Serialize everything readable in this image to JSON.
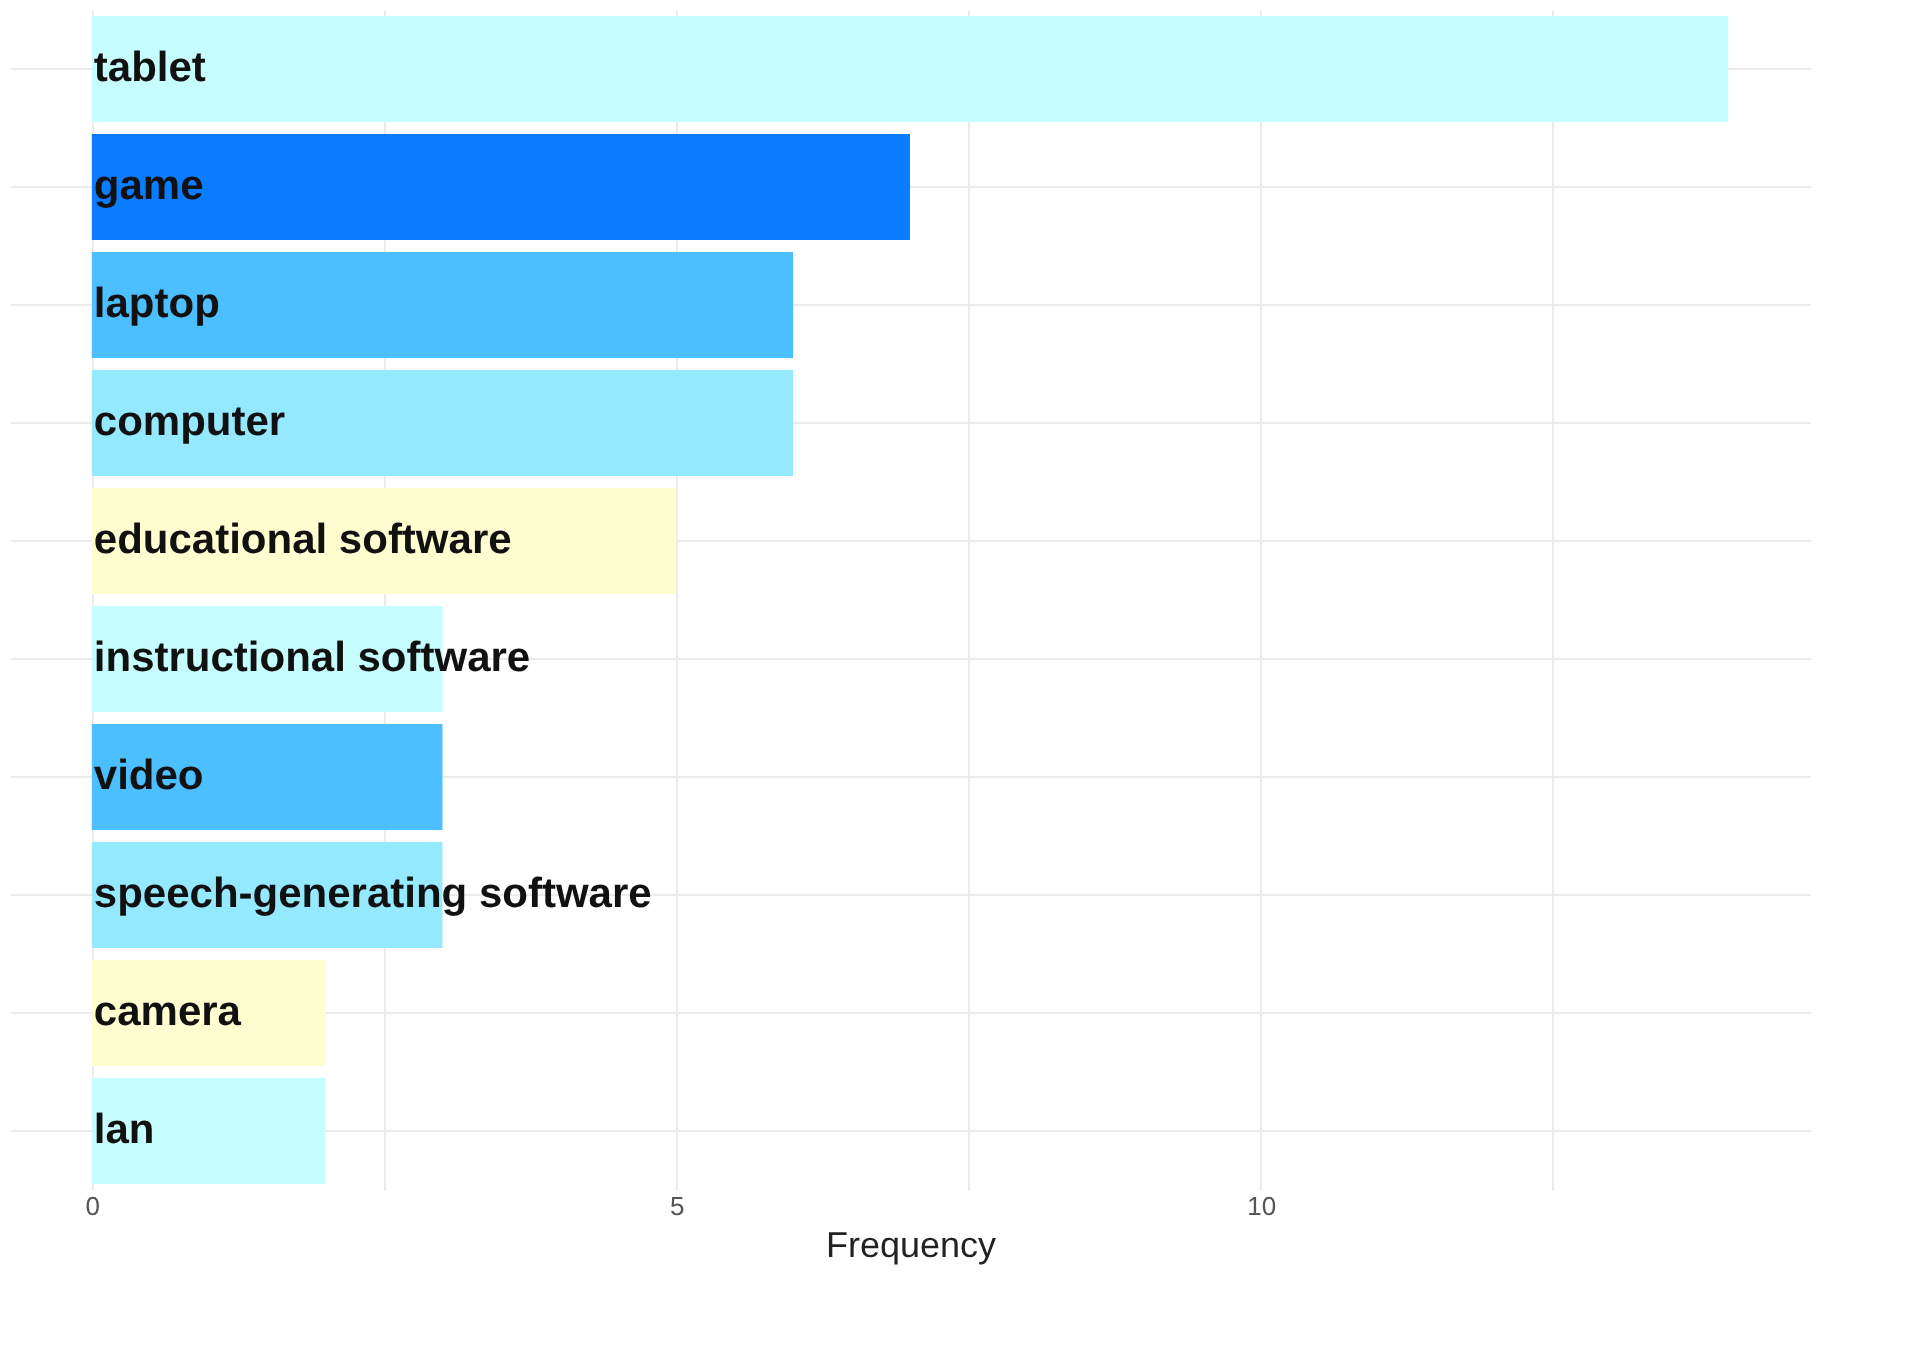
{
  "chart_data": {
    "type": "bar",
    "orientation": "horizontal",
    "xlabel": "Frequency",
    "categories": [
      "tablet",
      "game",
      "laptop",
      "computer",
      "educational software",
      "instructional software",
      "video",
      "speech-generating software",
      "camera",
      "lan"
    ],
    "values": [
      14,
      7,
      6,
      6,
      5,
      3,
      3,
      3,
      2,
      2
    ],
    "colors": [
      "#c6fdff",
      "#0a7cff",
      "#4bbfff",
      "#95e9ff",
      "#fefed0",
      "#c6fdff",
      "#4bbfff",
      "#95e9ff",
      "#fefed0",
      "#c6fdff"
    ],
    "xlim": [
      -0.7,
      14.7
    ],
    "xticks": [
      0,
      {
        "value": 2.5,
        "label": null
      },
      5,
      {
        "value": 7.5,
        "label": null
      },
      10,
      {
        "value": 12.5,
        "label": null
      }
    ],
    "grid": true,
    "tick_labels": "x",
    "legend": false
  }
}
